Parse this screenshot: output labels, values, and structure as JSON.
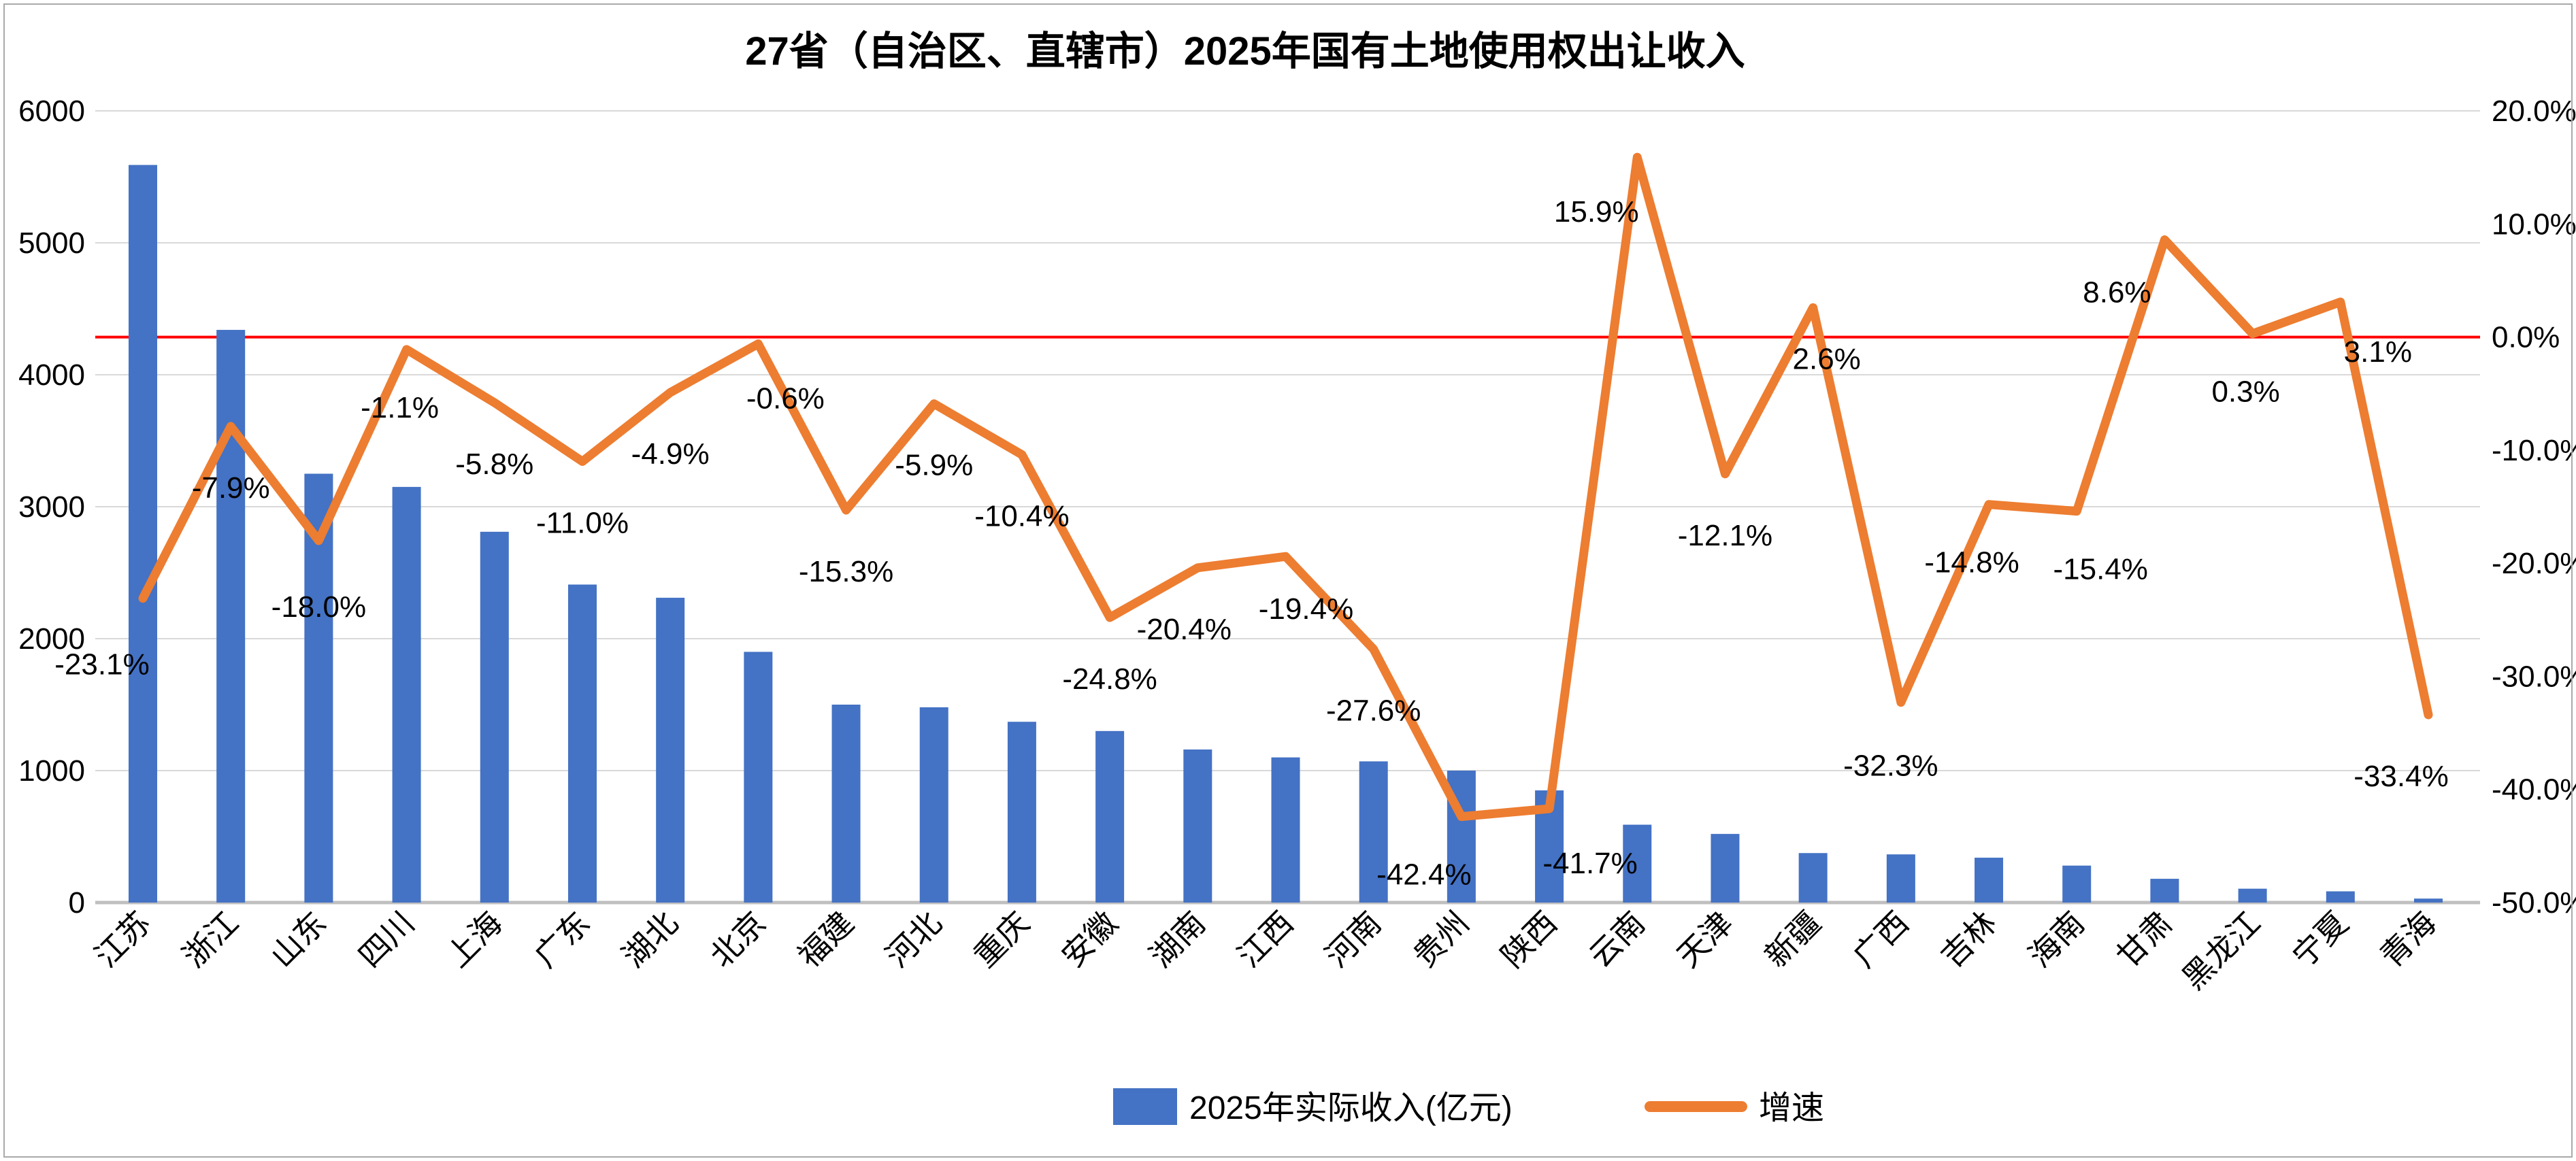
{
  "title": "27省（自治区、直辖市）2025年国有土地使用权出让收入",
  "chart_data": {
    "type": "combo",
    "subtype": "bar+line dual axis",
    "categories": [
      "江苏",
      "浙江",
      "山东",
      "四川",
      "上海",
      "广东",
      "湖北",
      "北京",
      "福建",
      "河北",
      "重庆",
      "安徽",
      "湖南",
      "江西",
      "河南",
      "贵州",
      "陕西",
      "云南",
      "天津",
      "新疆",
      "广西",
      "吉林",
      "海南",
      "甘肃",
      "黑龙江",
      "宁夏",
      "青海"
    ],
    "series": [
      {
        "name": "2025年实际收入(亿元)",
        "type": "bar",
        "color": "#4472C4",
        "axis": "left",
        "values": [
          5590,
          4340,
          3250,
          3150,
          2810,
          2410,
          2310,
          1900,
          1500,
          1480,
          1370,
          1300,
          1160,
          1100,
          1070,
          1000,
          850,
          590,
          520,
          375,
          365,
          340,
          280,
          180,
          105,
          85,
          30
        ]
      },
      {
        "name": "增速",
        "type": "line",
        "color": "#ED7D31",
        "axis": "right",
        "values": [
          -23.1,
          -7.9,
          -18.0,
          -1.1,
          -5.8,
          -11.0,
          -4.9,
          -0.6,
          -15.3,
          -5.9,
          -10.4,
          -24.8,
          -20.4,
          -19.4,
          -27.6,
          -42.4,
          -41.7,
          15.9,
          -12.1,
          2.6,
          -32.3,
          -14.8,
          -15.4,
          8.6,
          0.3,
          3.1,
          -33.4
        ],
        "data_labels": [
          "-23.1%",
          "-7.9%",
          "-18.0%",
          "-1.1%",
          "-5.8%",
          "-11.0%",
          "-4.9%",
          "-0.6%",
          "-15.3%",
          "-5.9%",
          "-10.4%",
          "-24.8%",
          "-20.4%",
          "-19.4%",
          "-27.6%",
          "-42.4%",
          "-41.7%",
          "15.9%",
          "-12.1%",
          "2.6%",
          "-32.3%",
          "-14.8%",
          "-15.4%",
          "8.6%",
          "0.3%",
          "3.1%",
          "-33.4%"
        ]
      }
    ],
    "left_axis": {
      "min": 0,
      "max": 6000,
      "tick_labels": [
        "0",
        "1000",
        "2000",
        "3000",
        "4000",
        "5000",
        "6000"
      ]
    },
    "right_axis": {
      "min": -50,
      "max": 20,
      "tick_labels": [
        "20.0%",
        "10.0%",
        "0.0%",
        "-10.0%",
        "-20.0%",
        "-30.0%",
        "-40.0%",
        "-50.0%"
      ]
    },
    "zero_reference_line": {
      "value_pct": 0,
      "color": "#FF0000"
    },
    "gridlines": true,
    "gridline_color": "#D9D9D9",
    "legend_position": "bottom"
  }
}
